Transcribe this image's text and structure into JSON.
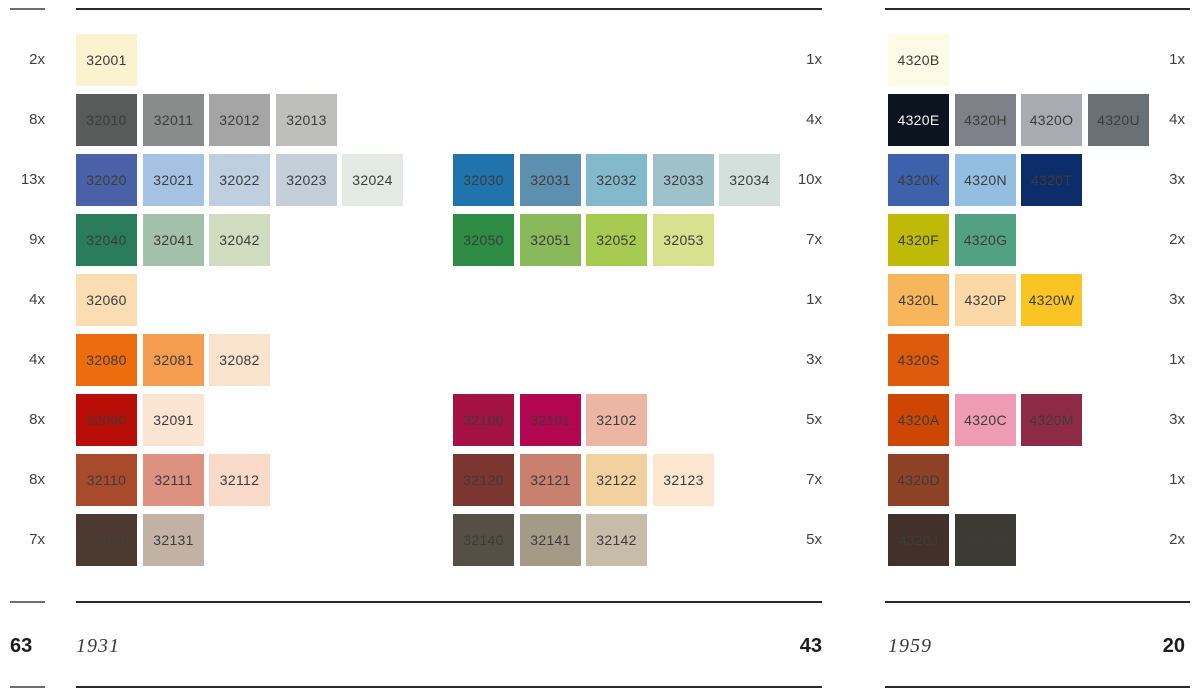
{
  "chart_data": {
    "type": "table",
    "subtype": "color-palette-comparison-grid",
    "legend_note": "rows grouped by hue; counts per row on both sides; totals and year under each palette",
    "palettes": [
      {
        "year_label": "1931",
        "left_total": "63",
        "right_total": "43",
        "rows": [
          {
            "left_count": "2x",
            "right_count": "1x",
            "group1": [
              {
                "code": "32001",
                "color": "#FBF2D0"
              }
            ],
            "group2": []
          },
          {
            "left_count": "8x",
            "right_count": "4x",
            "group1": [
              {
                "code": "32010",
                "color": "#595A5A"
              },
              {
                "code": "32011",
                "color": "#8A8B8B"
              },
              {
                "code": "32012",
                "color": "#A4A5A4"
              },
              {
                "code": "32013",
                "color": "#BEBFBB"
              }
            ],
            "group2": []
          },
          {
            "left_count": "13x",
            "right_count": "10x",
            "group1": [
              {
                "code": "32020",
                "color": "#4A60A7"
              },
              {
                "code": "32021",
                "color": "#A6C2E3"
              },
              {
                "code": "32022",
                "color": "#BFCFE0"
              },
              {
                "code": "32023",
                "color": "#C5CFDA"
              },
              {
                "code": "32024",
                "color": "#E3EAE3"
              }
            ],
            "group2": [
              {
                "code": "32030",
                "color": "#2173AD"
              },
              {
                "code": "32031",
                "color": "#5C90AE"
              },
              {
                "code": "32032",
                "color": "#84B9CB"
              },
              {
                "code": "32033",
                "color": "#9FC2CA"
              },
              {
                "code": "32034",
                "color": "#D3E0DB"
              }
            ]
          },
          {
            "left_count": "9x",
            "right_count": "7x",
            "group1": [
              {
                "code": "32040",
                "color": "#2B7B5D"
              },
              {
                "code": "32041",
                "color": "#A3C0AA"
              },
              {
                "code": "32042",
                "color": "#CFDCC0"
              }
            ],
            "group2": [
              {
                "code": "32050",
                "color": "#2F8C45"
              },
              {
                "code": "32051",
                "color": "#8BB85B"
              },
              {
                "code": "32052",
                "color": "#A7CA50"
              },
              {
                "code": "32053",
                "color": "#D7E28E"
              }
            ]
          },
          {
            "left_count": "4x",
            "right_count": "1x",
            "group1": [
              {
                "code": "32060",
                "color": "#FBDDB4"
              }
            ],
            "group2": []
          },
          {
            "left_count": "4x",
            "right_count": "3x",
            "group1": [
              {
                "code": "32080",
                "color": "#EC6C0E"
              },
              {
                "code": "32081",
                "color": "#F49C50"
              },
              {
                "code": "32082",
                "color": "#FAE3CD"
              }
            ],
            "group2": []
          },
          {
            "left_count": "8x",
            "right_count": "5x",
            "group1": [
              {
                "code": "32090",
                "color": "#B90D08"
              },
              {
                "code": "32091",
                "color": "#FCE4D3"
              }
            ],
            "group2": [
              {
                "code": "32100",
                "color": "#A41243"
              },
              {
                "code": "32101",
                "color": "#B20750"
              },
              {
                "code": "32102",
                "color": "#ECB6A4"
              }
            ]
          },
          {
            "left_count": "8x",
            "right_count": "7x",
            "group1": [
              {
                "code": "32110",
                "color": "#A84A2C"
              },
              {
                "code": "32111",
                "color": "#DC9181"
              },
              {
                "code": "32112",
                "color": "#F9D9C7"
              }
            ],
            "group2": [
              {
                "code": "32120",
                "color": "#7B3630"
              },
              {
                "code": "32121",
                "color": "#C8816E"
              },
              {
                "code": "32122",
                "color": "#F2D0A0"
              },
              {
                "code": "32123",
                "color": "#FCE6D0"
              }
            ]
          },
          {
            "left_count": "7x",
            "right_count": "5x",
            "group1": [
              {
                "code": "32130",
                "color": "#4C3A30"
              },
              {
                "code": "32131",
                "color": "#C2B2A6"
              }
            ],
            "group2": [
              {
                "code": "32140",
                "color": "#554F45"
              },
              {
                "code": "32141",
                "color": "#A39B88"
              },
              {
                "code": "32142",
                "color": "#C7BCAA"
              }
            ]
          }
        ]
      },
      {
        "year_label": "1959",
        "right_total": "20",
        "rows": [
          {
            "right_count": "1x",
            "group1": [
              {
                "code": "4320B",
                "color": "#FDFBE7"
              }
            ]
          },
          {
            "right_count": "4x",
            "group1": [
              {
                "code": "4320E",
                "color": "#0C141F",
                "text_color": "#F4F4F4"
              },
              {
                "code": "4320H",
                "color": "#7E8288"
              },
              {
                "code": "4320O",
                "color": "#A8ACB2"
              },
              {
                "code": "4320U",
                "color": "#697076"
              }
            ]
          },
          {
            "right_count": "3x",
            "group1": [
              {
                "code": "4320K",
                "color": "#3D62AB"
              },
              {
                "code": "4320N",
                "color": "#93BDE1"
              },
              {
                "code": "4320T",
                "color": "#0D2C6A"
              }
            ]
          },
          {
            "right_count": "2x",
            "group1": [
              {
                "code": "4320F",
                "color": "#BFB908"
              },
              {
                "code": "4320G",
                "color": "#53A184"
              }
            ]
          },
          {
            "right_count": "3x",
            "group1": [
              {
                "code": "4320L",
                "color": "#F7B55C"
              },
              {
                "code": "4320P",
                "color": "#FBD9A7"
              },
              {
                "code": "4320W",
                "color": "#F9C424"
              }
            ]
          },
          {
            "right_count": "1x",
            "group1": [
              {
                "code": "4320S",
                "color": "#DE5A0C"
              }
            ]
          },
          {
            "right_count": "3x",
            "group1": [
              {
                "code": "4320A",
                "color": "#CE4604"
              },
              {
                "code": "4320C",
                "color": "#EE9CB6"
              },
              {
                "code": "4320M",
                "color": "#8D2B46"
              }
            ]
          },
          {
            "right_count": "1x",
            "group1": [
              {
                "code": "4320D",
                "color": "#8D4125"
              }
            ]
          },
          {
            "right_count": "2x",
            "group1": [
              {
                "code": "4320J",
                "color": "#42302B"
              },
              {
                "code": "4320R",
                "color": "#3B3B33"
              }
            ]
          }
        ]
      }
    ]
  }
}
